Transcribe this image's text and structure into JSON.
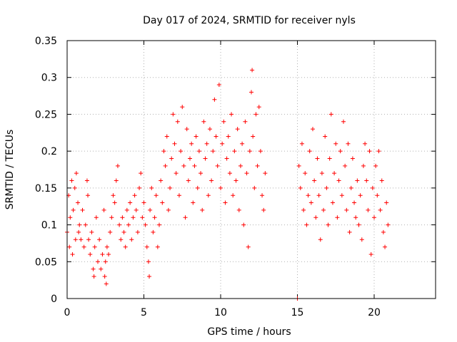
{
  "chart_data": {
    "type": "scatter",
    "title": "Day 017 of 2024, SRMTID for receiver nyls",
    "xlabel": "GPS time / hours",
    "ylabel": "SRMTID / TECUs",
    "xlim": [
      0,
      24
    ],
    "ylim": [
      0,
      0.35
    ],
    "grid": true,
    "marker": "+",
    "x_ticks": [
      0,
      5,
      10,
      15,
      20
    ],
    "x_tick_labels": [
      "0",
      "5",
      "10",
      "15",
      "20"
    ],
    "y_ticks": [
      0,
      0.05,
      0.1,
      0.15,
      0.2,
      0.25,
      0.3,
      0.35
    ],
    "y_tick_labels": [
      "0",
      "0.05",
      "0.1",
      "0.15",
      "0.2",
      "0.25",
      "0.3",
      "0.35"
    ],
    "series": [
      {
        "name": "SRMTID",
        "color": "#ff0000",
        "points": [
          [
            0.0,
            0.09
          ],
          [
            0.1,
            0.14
          ],
          [
            0.15,
            0.07
          ],
          [
            0.2,
            0.11
          ],
          [
            0.3,
            0.16
          ],
          [
            0.35,
            0.06
          ],
          [
            0.4,
            0.12
          ],
          [
            0.5,
            0.15
          ],
          [
            0.55,
            0.08
          ],
          [
            0.6,
            0.17
          ],
          [
            0.7,
            0.13
          ],
          [
            0.75,
            0.09
          ],
          [
            0.8,
            0.1
          ],
          [
            0.9,
            0.08
          ],
          [
            1.0,
            0.12
          ],
          [
            1.1,
            0.07
          ],
          [
            1.2,
            0.1
          ],
          [
            1.3,
            0.16
          ],
          [
            1.35,
            0.14
          ],
          [
            1.4,
            0.08
          ],
          [
            1.5,
            0.06
          ],
          [
            1.6,
            0.09
          ],
          [
            1.7,
            0.04
          ],
          [
            1.75,
            0.03
          ],
          [
            1.8,
            0.07
          ],
          [
            1.9,
            0.11
          ],
          [
            2.0,
            0.05
          ],
          [
            2.1,
            0.08
          ],
          [
            2.2,
            0.04
          ],
          [
            2.3,
            0.06
          ],
          [
            2.4,
            0.12
          ],
          [
            2.45,
            0.03
          ],
          [
            2.5,
            0.05
          ],
          [
            2.55,
            0.02
          ],
          [
            2.6,
            0.07
          ],
          [
            2.7,
            0.06
          ],
          [
            2.8,
            0.09
          ],
          [
            2.9,
            0.11
          ],
          [
            3.0,
            0.14
          ],
          [
            3.1,
            0.13
          ],
          [
            3.2,
            0.16
          ],
          [
            3.3,
            0.18
          ],
          [
            3.4,
            0.1
          ],
          [
            3.5,
            0.08
          ],
          [
            3.6,
            0.11
          ],
          [
            3.7,
            0.09
          ],
          [
            3.8,
            0.07
          ],
          [
            3.9,
            0.12
          ],
          [
            4.0,
            0.1
          ],
          [
            4.1,
            0.13
          ],
          [
            4.2,
            0.08
          ],
          [
            4.3,
            0.11
          ],
          [
            4.4,
            0.14
          ],
          [
            4.5,
            0.12
          ],
          [
            4.6,
            0.09
          ],
          [
            4.7,
            0.15
          ],
          [
            4.8,
            0.17
          ],
          [
            4.9,
            0.11
          ],
          [
            5.0,
            0.13
          ],
          [
            5.1,
            0.1
          ],
          [
            5.2,
            0.07
          ],
          [
            5.3,
            0.05
          ],
          [
            5.35,
            0.03
          ],
          [
            5.4,
            0.12
          ],
          [
            5.5,
            0.15
          ],
          [
            5.6,
            0.09
          ],
          [
            5.7,
            0.11
          ],
          [
            5.8,
            0.14
          ],
          [
            5.9,
            0.07
          ],
          [
            6.0,
            0.1
          ],
          [
            6.1,
            0.16
          ],
          [
            6.2,
            0.13
          ],
          [
            6.3,
            0.2
          ],
          [
            6.4,
            0.18
          ],
          [
            6.5,
            0.22
          ],
          [
            6.6,
            0.12
          ],
          [
            6.7,
            0.15
          ],
          [
            6.8,
            0.19
          ],
          [
            6.9,
            0.25
          ],
          [
            7.0,
            0.21
          ],
          [
            7.1,
            0.17
          ],
          [
            7.2,
            0.24
          ],
          [
            7.3,
            0.14
          ],
          [
            7.4,
            0.2
          ],
          [
            7.5,
            0.26
          ],
          [
            7.6,
            0.18
          ],
          [
            7.7,
            0.11
          ],
          [
            7.8,
            0.23
          ],
          [
            7.9,
            0.16
          ],
          [
            8.0,
            0.19
          ],
          [
            8.1,
            0.21
          ],
          [
            8.2,
            0.13
          ],
          [
            8.3,
            0.18
          ],
          [
            8.4,
            0.22
          ],
          [
            8.5,
            0.15
          ],
          [
            8.6,
            0.2
          ],
          [
            8.7,
            0.17
          ],
          [
            8.8,
            0.12
          ],
          [
            8.9,
            0.24
          ],
          [
            9.0,
            0.19
          ],
          [
            9.1,
            0.21
          ],
          [
            9.2,
            0.14
          ],
          [
            9.3,
            0.23
          ],
          [
            9.4,
            0.16
          ],
          [
            9.5,
            0.2
          ],
          [
            9.6,
            0.27
          ],
          [
            9.7,
            0.22
          ],
          [
            9.8,
            0.18
          ],
          [
            9.9,
            0.29
          ],
          [
            10.0,
            0.15
          ],
          [
            10.1,
            0.21
          ],
          [
            10.2,
            0.24
          ],
          [
            10.3,
            0.13
          ],
          [
            10.4,
            0.19
          ],
          [
            10.5,
            0.22
          ],
          [
            10.6,
            0.17
          ],
          [
            10.7,
            0.25
          ],
          [
            10.8,
            0.14
          ],
          [
            10.9,
            0.2
          ],
          [
            11.0,
            0.16
          ],
          [
            11.1,
            0.23
          ],
          [
            11.2,
            0.12
          ],
          [
            11.3,
            0.18
          ],
          [
            11.4,
            0.21
          ],
          [
            11.5,
            0.1
          ],
          [
            11.6,
            0.24
          ],
          [
            11.7,
            0.17
          ],
          [
            11.8,
            0.07
          ],
          [
            11.9,
            0.2
          ],
          [
            12.0,
            0.28
          ],
          [
            12.05,
            0.31
          ],
          [
            12.1,
            0.22
          ],
          [
            12.2,
            0.15
          ],
          [
            12.3,
            0.25
          ],
          [
            12.4,
            0.18
          ],
          [
            12.5,
            0.26
          ],
          [
            12.6,
            0.2
          ],
          [
            12.7,
            0.14
          ],
          [
            12.8,
            0.12
          ],
          [
            12.9,
            0.17
          ],
          [
            15.0,
            0.0
          ],
          [
            15.1,
            0.18
          ],
          [
            15.2,
            0.15
          ],
          [
            15.3,
            0.21
          ],
          [
            15.4,
            0.12
          ],
          [
            15.5,
            0.17
          ],
          [
            15.6,
            0.1
          ],
          [
            15.7,
            0.14
          ],
          [
            15.8,
            0.2
          ],
          [
            15.9,
            0.13
          ],
          [
            16.0,
            0.23
          ],
          [
            16.1,
            0.16
          ],
          [
            16.2,
            0.11
          ],
          [
            16.3,
            0.19
          ],
          [
            16.4,
            0.14
          ],
          [
            16.5,
            0.08
          ],
          [
            16.6,
            0.17
          ],
          [
            16.7,
            0.12
          ],
          [
            16.8,
            0.22
          ],
          [
            16.9,
            0.15
          ],
          [
            17.0,
            0.1
          ],
          [
            17.1,
            0.19
          ],
          [
            17.2,
            0.25
          ],
          [
            17.3,
            0.13
          ],
          [
            17.4,
            0.17
          ],
          [
            17.5,
            0.21
          ],
          [
            17.6,
            0.11
          ],
          [
            17.7,
            0.16
          ],
          [
            17.8,
            0.2
          ],
          [
            17.9,
            0.14
          ],
          [
            18.0,
            0.24
          ],
          [
            18.1,
            0.18
          ],
          [
            18.2,
            0.12
          ],
          [
            18.3,
            0.21
          ],
          [
            18.4,
            0.09
          ],
          [
            18.5,
            0.15
          ],
          [
            18.6,
            0.19
          ],
          [
            18.7,
            0.13
          ],
          [
            18.8,
            0.11
          ],
          [
            18.9,
            0.16
          ],
          [
            19.0,
            0.1
          ],
          [
            19.1,
            0.14
          ],
          [
            19.2,
            0.08
          ],
          [
            19.3,
            0.18
          ],
          [
            19.4,
            0.21
          ],
          [
            19.5,
            0.16
          ],
          [
            19.6,
            0.12
          ],
          [
            19.7,
            0.2
          ],
          [
            19.8,
            0.06
          ],
          [
            19.9,
            0.15
          ],
          [
            20.0,
            0.11
          ],
          [
            20.1,
            0.18
          ],
          [
            20.2,
            0.14
          ],
          [
            20.3,
            0.2
          ],
          [
            20.4,
            0.12
          ],
          [
            20.5,
            0.16
          ],
          [
            20.6,
            0.09
          ],
          [
            20.7,
            0.07
          ],
          [
            20.8,
            0.13
          ],
          [
            20.9,
            0.1
          ]
        ]
      }
    ]
  }
}
